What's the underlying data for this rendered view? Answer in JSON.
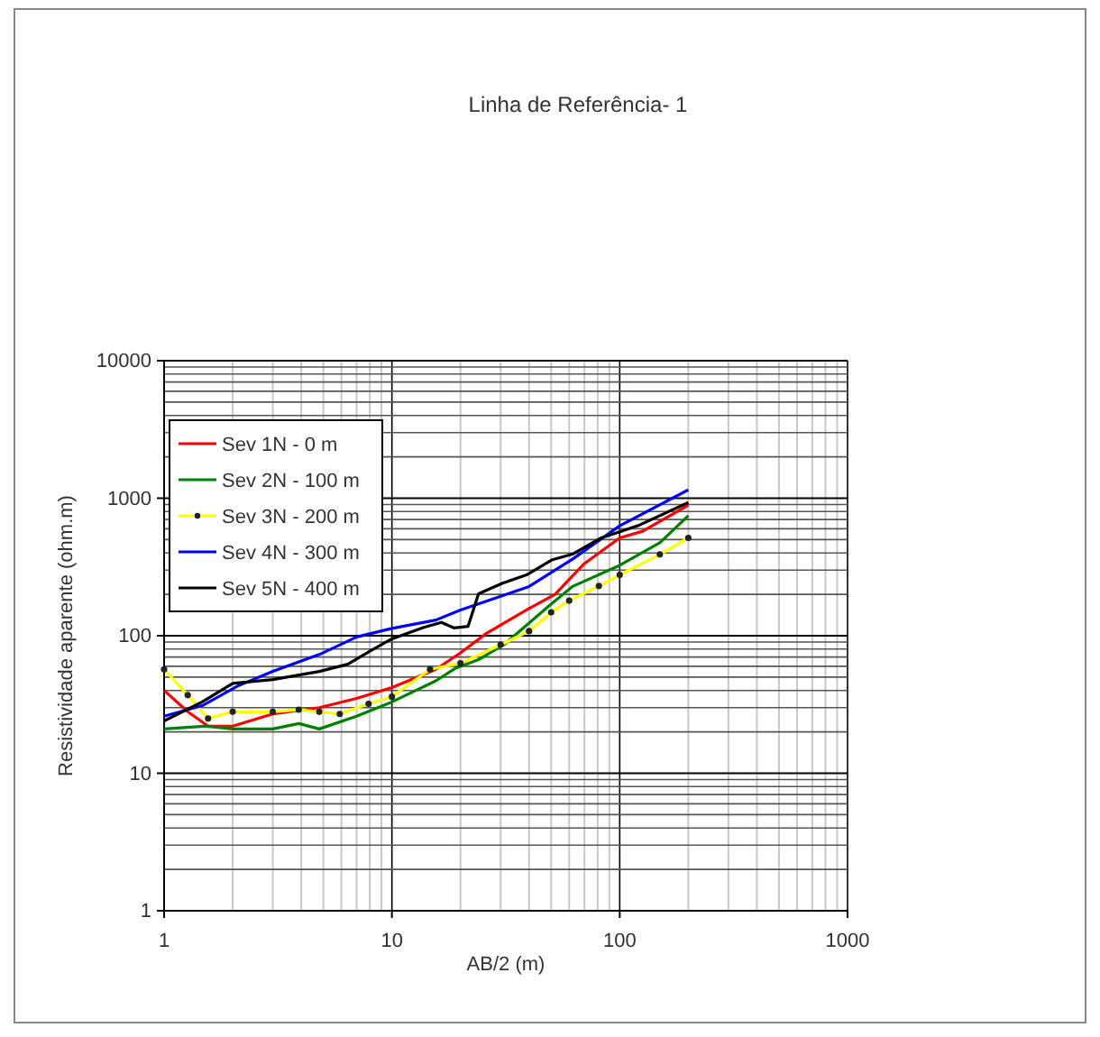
{
  "chart_data": {
    "type": "line",
    "title": "Linha de Referência- 1",
    "xlabel": "AB/2 (m)",
    "ylabel": "Resistividade aparente (ohm.m)",
    "log": "xy",
    "grid": true,
    "legend": "top left",
    "line_style": "solid",
    "xlim": [
      1,
      1000
    ],
    "ylim": [
      1,
      10000
    ],
    "xticks": [
      1,
      {
        "value": 2,
        "label": null
      },
      {
        "value": 3,
        "label": null
      },
      {
        "value": 4,
        "label": null
      },
      {
        "value": 5,
        "label": null
      },
      {
        "value": 6,
        "label": null
      },
      {
        "value": 7,
        "label": null
      },
      {
        "value": 8,
        "label": null
      },
      {
        "value": 9,
        "label": null
      },
      10,
      {
        "value": 20,
        "label": null
      },
      {
        "value": 30,
        "label": null
      },
      {
        "value": 40,
        "label": null
      },
      {
        "value": 50,
        "label": null
      },
      {
        "value": 60,
        "label": null
      },
      {
        "value": 70,
        "label": null
      },
      {
        "value": 80,
        "label": null
      },
      {
        "value": 90,
        "label": null
      },
      100,
      {
        "value": 200,
        "label": null
      },
      {
        "value": 300,
        "label": null
      },
      {
        "value": 400,
        "label": null
      },
      {
        "value": 500,
        "label": null
      },
      {
        "value": 600,
        "label": null
      },
      {
        "value": 700,
        "label": null
      },
      {
        "value": 800,
        "label": null
      },
      {
        "value": 900,
        "label": null
      },
      1000
    ],
    "yticks": [
      1,
      {
        "value": 2,
        "label": null
      },
      {
        "value": 3,
        "label": null
      },
      {
        "value": 4,
        "label": null
      },
      {
        "value": 5,
        "label": null
      },
      {
        "value": 6,
        "label": null
      },
      {
        "value": 7,
        "label": null
      },
      {
        "value": 8,
        "label": null
      },
      {
        "value": 9,
        "label": null
      },
      10,
      {
        "value": 20,
        "label": null
      },
      {
        "value": 30,
        "label": null
      },
      {
        "value": 40,
        "label": null
      },
      {
        "value": 50,
        "label": null
      },
      {
        "value": 60,
        "label": null
      },
      {
        "value": 70,
        "label": null
      },
      {
        "value": 80,
        "label": null
      },
      {
        "value": 90,
        "label": null
      },
      100,
      {
        "value": 200,
        "label": null
      },
      {
        "value": 300,
        "label": null
      },
      {
        "value": 400,
        "label": null
      },
      {
        "value": 500,
        "label": null
      },
      {
        "value": 600,
        "label": null
      },
      {
        "value": 700,
        "label": null
      },
      {
        "value": 800,
        "label": null
      },
      {
        "value": 900,
        "label": null
      },
      1000,
      {
        "value": 2000,
        "label": null
      },
      {
        "value": 3000,
        "label": null
      },
      {
        "value": 4000,
        "label": null
      },
      {
        "value": 5000,
        "label": null
      },
      {
        "value": 6000,
        "label": null
      },
      {
        "value": 7000,
        "label": null
      },
      {
        "value": 8000,
        "label": null
      },
      {
        "value": 9000,
        "label": null
      },
      10000
    ],
    "series": [
      {
        "name": "Sev 1N - 0 m",
        "color": "#ff0000",
        "marker": "none",
        "x": [
          1,
          1.27,
          1.56,
          2,
          3,
          4.8,
          7,
          10,
          15.6,
          20,
          26,
          39,
          52,
          70,
          100,
          126,
          200
        ],
        "values": [
          40,
          28,
          22,
          22,
          27,
          30,
          35,
          42,
          57,
          75,
          104,
          154,
          200,
          335,
          515,
          575,
          890
        ]
      },
      {
        "name": "Sev 2N - 100 m",
        "color": "#008000",
        "marker": "none",
        "x": [
          1,
          1.5,
          2,
          3,
          3.9,
          4.8,
          7,
          10,
          15.6,
          19,
          24,
          31,
          49,
          62,
          100,
          150,
          200
        ],
        "values": [
          21,
          22,
          21,
          21,
          23,
          21,
          26,
          33,
          47,
          58,
          67,
          86,
          165,
          228,
          325,
          475,
          745
        ]
      },
      {
        "name": "Sev 3N - 200 m",
        "color": "#ffff00",
        "marker": "circle",
        "x": [
          1,
          1.27,
          1.56,
          2,
          3,
          3.9,
          4.8,
          5.9,
          7.9,
          10,
          14.7,
          20,
          30,
          40,
          50,
          60,
          81,
          100,
          150,
          200
        ],
        "values": [
          57,
          37,
          25,
          28,
          28,
          29,
          28,
          27,
          32,
          36,
          57,
          63,
          86,
          108,
          148,
          180,
          230,
          277,
          390,
          515
        ]
      },
      {
        "name": "Sev 4N - 300 m",
        "color": "#0000ff",
        "marker": "none",
        "x": [
          1,
          1.47,
          2.1,
          3,
          4.8,
          7,
          10,
          15.6,
          20,
          40,
          62,
          100,
          200
        ],
        "values": [
          26,
          31,
          43,
          55,
          73,
          98,
          113,
          130,
          154,
          228,
          360,
          630,
          1150
        ]
      },
      {
        "name": "Sev 5N - 400 m",
        "color": "#000000",
        "marker": "none",
        "x": [
          1,
          1.47,
          2,
          3,
          4.8,
          6.4,
          8.1,
          10,
          13.8,
          16.5,
          18.7,
          21.6,
          24,
          30.6,
          39,
          50.6,
          62,
          83,
          100,
          120,
          200
        ],
        "values": [
          24,
          33,
          45,
          48,
          55,
          62,
          78,
          95,
          115,
          125,
          114,
          117,
          202,
          241,
          277,
          357,
          392,
          515,
          570,
          630,
          930
        ]
      }
    ]
  }
}
